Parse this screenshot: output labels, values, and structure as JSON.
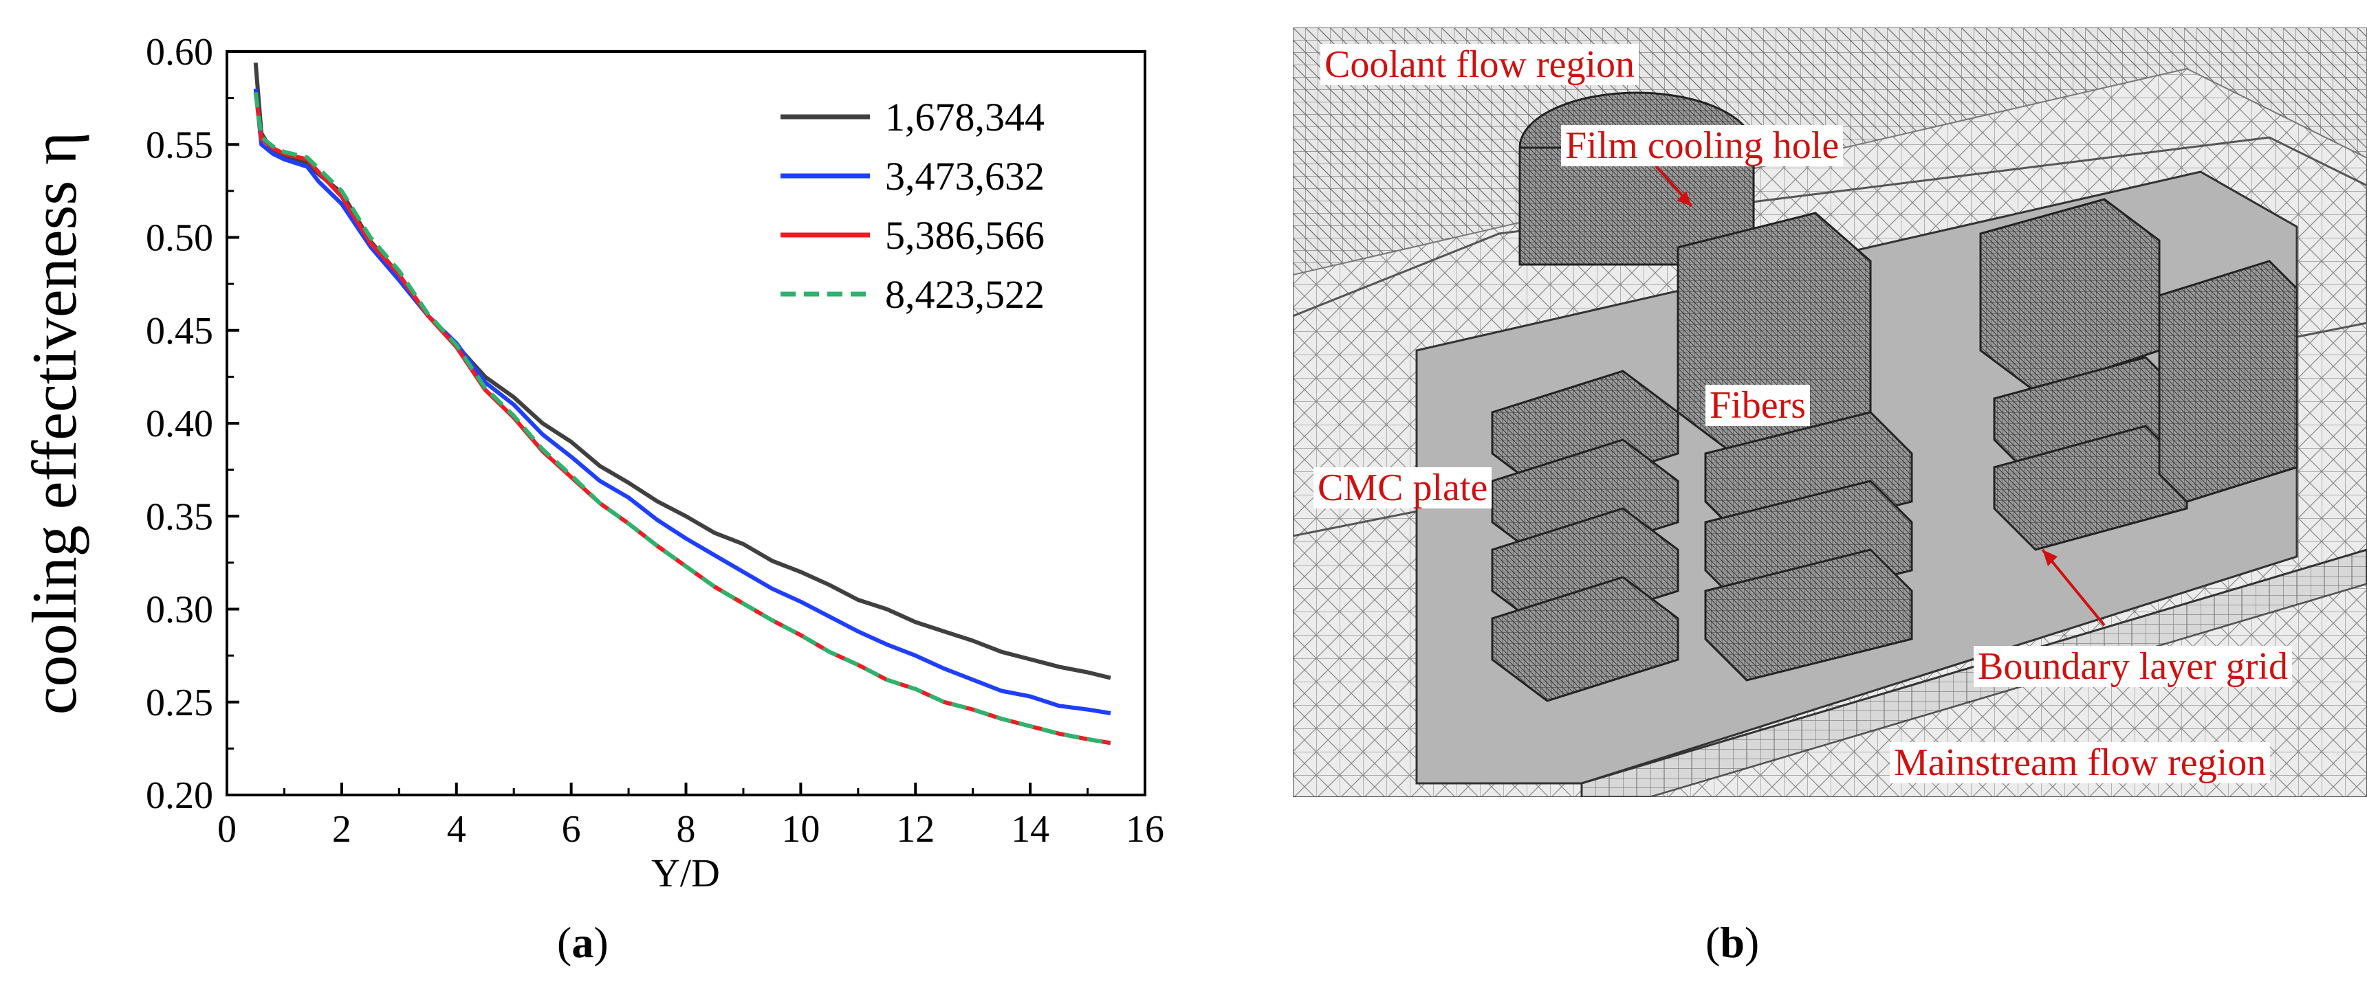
{
  "chart_data": {
    "type": "line",
    "title": "",
    "xlabel": "Y/D",
    "ylabel": "cooling effectiveness η",
    "xlim": [
      0,
      16
    ],
    "ylim": [
      0.2,
      0.6
    ],
    "xticks": [
      "0",
      "2",
      "4",
      "6",
      "8",
      "10",
      "12",
      "14",
      "16"
    ],
    "yticks": [
      "0.20",
      "0.25",
      "0.30",
      "0.35",
      "0.40",
      "0.45",
      "0.50",
      "0.55",
      "0.60"
    ],
    "legend_position": "top-right",
    "series": [
      {
        "name": "1,678,344",
        "color": "#404040",
        "dash": "solid",
        "x": [
          0.5,
          0.6,
          0.8,
          1.0,
          1.4,
          1.6,
          2.0,
          2.5,
          3.0,
          3.5,
          4.0,
          4.5,
          5.0,
          5.5,
          6.0,
          6.5,
          7.0,
          7.5,
          8.0,
          8.5,
          9.0,
          9.5,
          10.0,
          10.5,
          11.0,
          11.5,
          12.0,
          12.5,
          13.0,
          13.5,
          14.0,
          14.5,
          15.0,
          15.4
        ],
        "y": [
          0.594,
          0.556,
          0.546,
          0.544,
          0.54,
          0.534,
          0.524,
          0.498,
          0.48,
          0.458,
          0.442,
          0.425,
          0.414,
          0.4,
          0.39,
          0.377,
          0.368,
          0.358,
          0.35,
          0.341,
          0.335,
          0.326,
          0.32,
          0.313,
          0.305,
          0.3,
          0.293,
          0.288,
          0.283,
          0.277,
          0.273,
          0.269,
          0.266,
          0.263
        ]
      },
      {
        "name": "3,473,632",
        "color": "#1f3fff",
        "dash": "solid",
        "x": [
          0.5,
          0.6,
          0.8,
          1.0,
          1.4,
          1.6,
          2.0,
          2.5,
          3.0,
          3.5,
          4.0,
          4.5,
          5.0,
          5.5,
          6.0,
          6.5,
          7.0,
          7.5,
          8.0,
          8.5,
          9.0,
          9.5,
          10.0,
          10.5,
          11.0,
          11.5,
          12.0,
          12.5,
          13.0,
          13.5,
          14.0,
          14.5,
          15.0,
          15.4
        ],
        "y": [
          0.58,
          0.55,
          0.545,
          0.542,
          0.538,
          0.53,
          0.518,
          0.495,
          0.477,
          0.458,
          0.443,
          0.422,
          0.41,
          0.394,
          0.382,
          0.369,
          0.36,
          0.348,
          0.338,
          0.329,
          0.32,
          0.311,
          0.304,
          0.296,
          0.288,
          0.281,
          0.275,
          0.268,
          0.262,
          0.256,
          0.253,
          0.248,
          0.246,
          0.244
        ]
      },
      {
        "name": "5,386,566",
        "color": "#ee1c24",
        "dash": "solid",
        "x": [
          0.5,
          0.6,
          0.8,
          1.0,
          1.4,
          1.6,
          2.0,
          2.5,
          3.0,
          3.5,
          4.0,
          4.5,
          5.0,
          5.5,
          6.0,
          6.5,
          7.0,
          7.5,
          8.0,
          8.5,
          9.0,
          9.5,
          10.0,
          10.5,
          11.0,
          11.5,
          12.0,
          12.5,
          13.0,
          13.5,
          14.0,
          14.5,
          15.0,
          15.4
        ],
        "y": [
          0.578,
          0.553,
          0.548,
          0.545,
          0.542,
          0.535,
          0.522,
          0.497,
          0.48,
          0.458,
          0.441,
          0.418,
          0.403,
          0.385,
          0.371,
          0.357,
          0.346,
          0.334,
          0.323,
          0.312,
          0.303,
          0.294,
          0.286,
          0.277,
          0.27,
          0.262,
          0.257,
          0.25,
          0.246,
          0.241,
          0.237,
          0.233,
          0.23,
          0.228
        ]
      },
      {
        "name": "8,423,522",
        "color": "#2db36e",
        "dash": "dashed",
        "x": [
          0.5,
          0.6,
          0.8,
          1.0,
          1.4,
          1.6,
          2.0,
          2.5,
          3.0,
          3.5,
          4.0,
          4.5,
          5.0,
          5.5,
          6.0,
          6.5,
          7.0,
          7.5,
          8.0,
          8.5,
          9.0,
          9.5,
          10.0,
          10.5,
          11.0,
          11.5,
          12.0,
          12.5,
          13.0,
          13.5,
          14.0,
          14.5,
          15.0,
          15.4
        ],
        "y": [
          0.578,
          0.554,
          0.549,
          0.546,
          0.543,
          0.537,
          0.525,
          0.5,
          0.482,
          0.459,
          0.442,
          0.419,
          0.404,
          0.386,
          0.372,
          0.357,
          0.346,
          0.334,
          0.323,
          0.312,
          0.303,
          0.294,
          0.286,
          0.277,
          0.27,
          0.262,
          0.257,
          0.25,
          0.246,
          0.241,
          0.237,
          0.233,
          0.23,
          0.228
        ]
      }
    ]
  },
  "captions": {
    "a": "a",
    "b": "b"
  },
  "mesh_labels": {
    "coolant": "Coolant flow region",
    "film_hole": "Film cooling hole",
    "fibers": "Fibers",
    "cmc_plate": "CMC plate",
    "boundary_layer": "Boundary layer grid",
    "mainstream": "Mainstream flow region"
  }
}
